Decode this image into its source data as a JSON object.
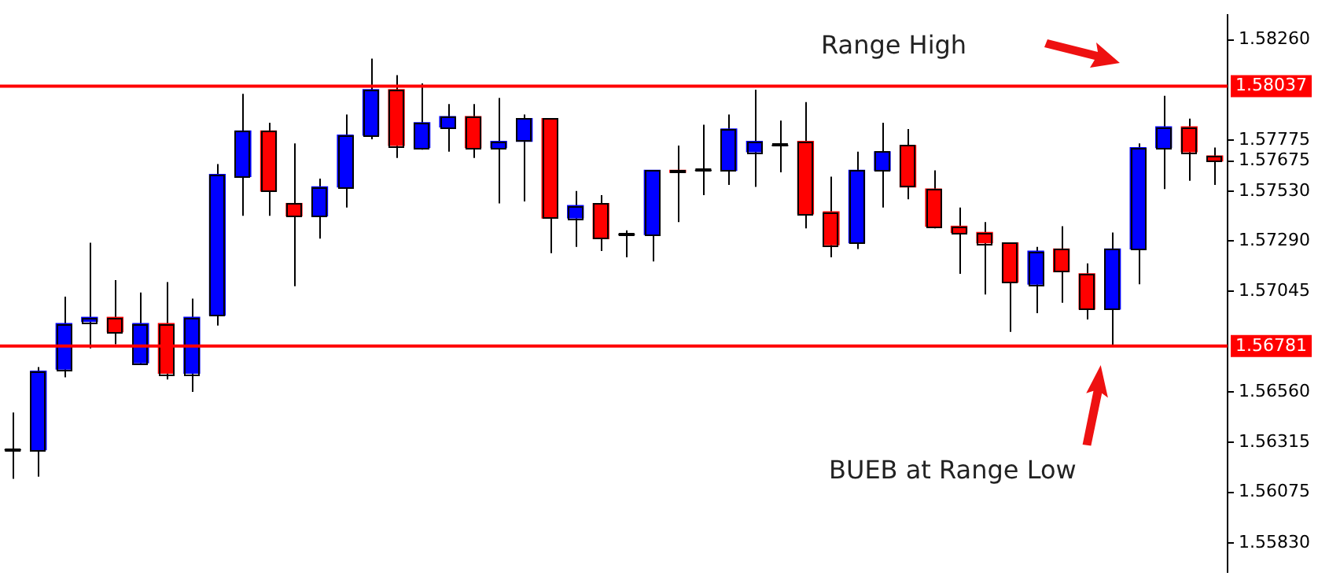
{
  "chart_data": {
    "type": "candlestick",
    "categories": [
      null,
      null,
      null,
      null,
      null,
      null,
      null,
      null,
      null,
      null,
      null,
      null,
      null,
      null,
      null,
      null,
      null,
      null,
      null,
      null,
      null,
      null,
      null,
      null,
      null,
      null,
      null,
      null,
      null,
      null,
      null,
      null,
      null,
      null,
      null,
      null,
      null,
      null,
      null,
      null,
      null,
      null,
      null,
      null,
      null,
      null,
      null,
      null
    ],
    "ohlc": [
      [
        1.5628,
        1.5646,
        1.5614,
        1.5628
      ],
      [
        1.5628,
        1.5668,
        1.5615,
        1.5666
      ],
      [
        1.5667,
        1.5702,
        1.5663,
        1.5689
      ],
      [
        1.569,
        1.5728,
        1.5677,
        1.5692
      ],
      [
        1.5692,
        1.571,
        1.5679,
        1.5685
      ],
      [
        1.567,
        1.5704,
        1.5669,
        1.5689
      ],
      [
        1.5689,
        1.5709,
        1.5662,
        1.5665
      ],
      [
        1.5665,
        1.5701,
        1.5656,
        1.5692
      ],
      [
        1.5693,
        1.5766,
        1.5688,
        1.5761
      ],
      [
        1.576,
        1.58,
        1.5741,
        1.5782
      ],
      [
        1.5782,
        1.5786,
        1.5741,
        1.5753
      ],
      [
        1.5747,
        1.5776,
        1.5707,
        1.5741
      ],
      [
        1.5741,
        1.5759,
        1.573,
        1.5755
      ],
      [
        1.5755,
        1.579,
        1.5745,
        1.578
      ],
      [
        1.578,
        1.5817,
        1.5778,
        1.5802
      ],
      [
        1.5802,
        1.5809,
        1.5769,
        1.5775
      ],
      [
        1.5774,
        1.5805,
        1.5773,
        1.5786
      ],
      [
        1.5784,
        1.5795,
        1.5772,
        1.5789
      ],
      [
        1.5789,
        1.5795,
        1.5769,
        1.5774
      ],
      [
        1.5774,
        1.5798,
        1.5747,
        1.5777
      ],
      [
        1.5777,
        1.579,
        1.5748,
        1.5788
      ],
      [
        1.5788,
        1.5788,
        1.5723,
        1.574
      ],
      [
        1.574,
        1.5753,
        1.5726,
        1.5746
      ],
      [
        1.5747,
        1.5751,
        1.5724,
        1.573
      ],
      [
        1.5732,
        1.5734,
        1.5721,
        1.5732
      ],
      [
        1.5732,
        1.5763,
        1.5719,
        1.5763
      ],
      [
        1.5763,
        1.5775,
        1.5738,
        1.5762
      ],
      [
        1.5763,
        1.5785,
        1.5751,
        1.5763
      ],
      [
        1.5763,
        1.579,
        1.5756,
        1.5783
      ],
      [
        1.5772,
        1.5802,
        1.5755,
        1.5777
      ],
      [
        1.5775,
        1.5787,
        1.5762,
        1.5775
      ],
      [
        1.5777,
        1.5796,
        1.5735,
        1.5742
      ],
      [
        1.5743,
        1.576,
        1.5721,
        1.5727
      ],
      [
        1.5728,
        1.5772,
        1.5725,
        1.5763
      ],
      [
        1.5763,
        1.5786,
        1.5745,
        1.5772
      ],
      [
        1.5775,
        1.5783,
        1.5749,
        1.5755
      ],
      [
        1.5754,
        1.5763,
        1.5735,
        1.5736
      ],
      [
        1.5736,
        1.5745,
        1.5713,
        1.5733
      ],
      [
        1.5733,
        1.5738,
        1.5703,
        1.5728
      ],
      [
        1.5728,
        1.5728,
        1.5685,
        1.5709
      ],
      [
        1.5708,
        1.5726,
        1.5694,
        1.5724
      ],
      [
        1.5725,
        1.5736,
        1.5699,
        1.5714
      ],
      [
        1.5713,
        1.5718,
        1.5691,
        1.5696
      ],
      [
        1.5696,
        1.5733,
        1.5678,
        1.5725
      ],
      [
        1.5725,
        1.5776,
        1.5708,
        1.5774
      ],
      [
        1.5774,
        1.5799,
        1.5754,
        1.5784
      ],
      [
        1.5784,
        1.5788,
        1.5758,
        1.5772
      ],
      [
        1.577,
        1.5774,
        1.5756,
        1.57675
      ]
    ],
    "colors": [
      "#000000",
      "#0000ff",
      "#0000ff",
      "#0000ff",
      "#ff0000",
      "#0000ff",
      "#ff0000",
      "#0000ff",
      "#0000ff",
      "#0000ff",
      "#ff0000",
      "#ff0000",
      "#0000ff",
      "#0000ff",
      "#0000ff",
      "#ff0000",
      "#0000ff",
      "#0000ff",
      "#ff0000",
      "#0000ff",
      "#0000ff",
      "#ff0000",
      "#0000ff",
      "#ff0000",
      "#000000",
      "#0000ff",
      "#ff0000",
      "#000000",
      "#0000ff",
      "#0000ff",
      "#000000",
      "#ff0000",
      "#ff0000",
      "#0000ff",
      "#0000ff",
      "#ff0000",
      "#ff0000",
      "#ff0000",
      "#ff0000",
      "#ff0000",
      "#0000ff",
      "#ff0000",
      "#ff0000",
      "#0000ff",
      "#0000ff",
      "#0000ff",
      "#ff0000",
      "#ff0000"
    ],
    "ylim": [
      1.5569,
      1.5838
    ],
    "yticks": [
      {
        "value": 1.5583,
        "label": "1.55830"
      },
      1.56075,
      1.56315,
      {
        "value": 1.5656,
        "label": "1.56560"
      },
      1.57045,
      {
        "value": 1.5729,
        "label": "1.57290"
      },
      {
        "value": 1.5753,
        "label": "1.57530"
      },
      1.57675,
      1.57775,
      {
        "value": 1.5826,
        "label": "1.58260"
      }
    ],
    "tick_labels": "y",
    "ref_lines": [
      {
        "axis": "y",
        "value": 1.58037,
        "label": "1.58037",
        "color": "#ff0000"
      },
      {
        "axis": "y",
        "value": 1.56781,
        "label": "1.56781",
        "color": "#ff0000"
      }
    ],
    "annotations": [
      "Range High",
      "BUEB at Range Low"
    ],
    "legend": false,
    "grid": false
  }
}
